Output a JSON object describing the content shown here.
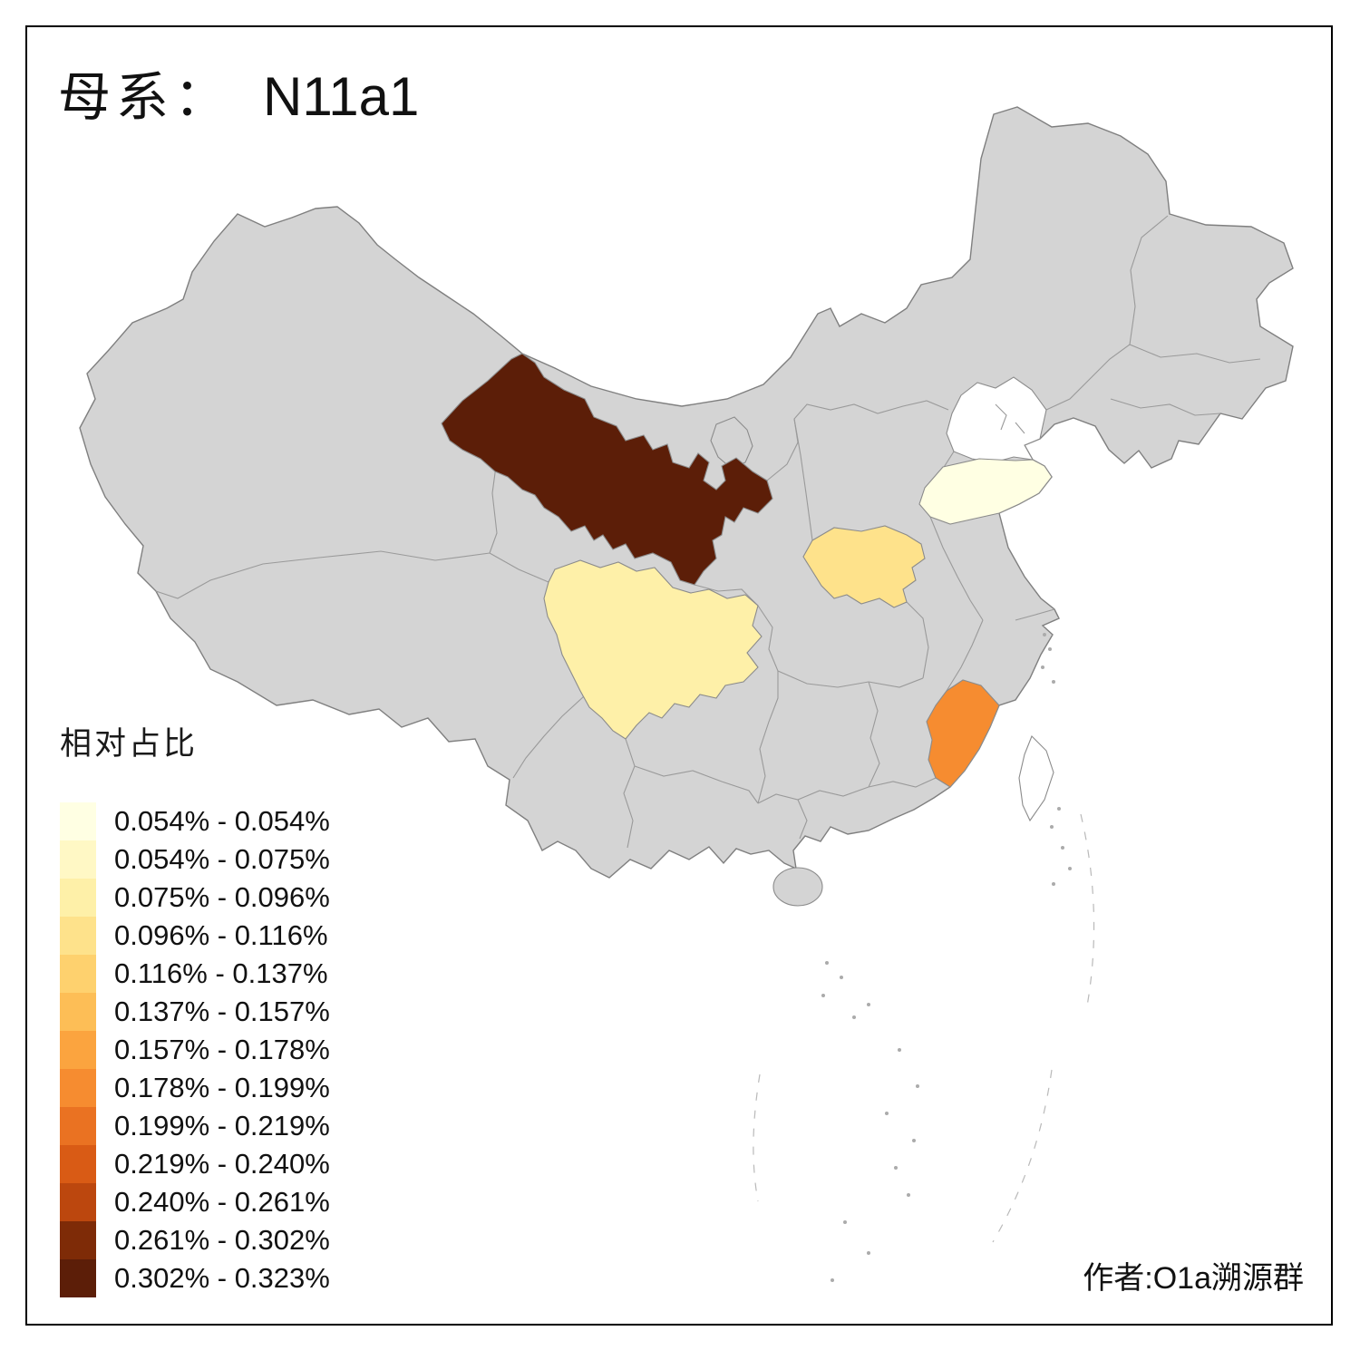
{
  "title": {
    "prefix": "母系：",
    "haplogroup": "N11a1"
  },
  "legend": {
    "title": "相对占比",
    "items": [
      {
        "range": "0.054% - 0.054%",
        "color": "#FFFFE3"
      },
      {
        "range": "0.054% - 0.075%",
        "color": "#FFF8C5"
      },
      {
        "range": "0.075% - 0.096%",
        "color": "#FEF0A8"
      },
      {
        "range": "0.096% - 0.116%",
        "color": "#FEE28B"
      },
      {
        "range": "0.116% - 0.137%",
        "color": "#FED16E"
      },
      {
        "range": "0.137% - 0.157%",
        "color": "#FDBE56"
      },
      {
        "range": "0.157% - 0.178%",
        "color": "#FBA43F"
      },
      {
        "range": "0.178% - 0.199%",
        "color": "#F68C30"
      },
      {
        "range": "0.199% - 0.219%",
        "color": "#EA7222"
      },
      {
        "range": "0.219% - 0.240%",
        "color": "#D95B15"
      },
      {
        "range": "0.240% - 0.261%",
        "color": "#BC470E"
      },
      {
        "range": "0.261% - 0.302%",
        "color": "#7E2B07"
      },
      {
        "range": "0.302% - 0.323%",
        "color": "#5C1E08"
      }
    ]
  },
  "credit": "作者:O1a溯源群",
  "map": {
    "base_fill": "#D4D4D4",
    "no_data_fill": "#FFFFFF",
    "provinces": {
      "gansu": {
        "name": "Gansu",
        "color": "#5C1E08",
        "range": "0.302% - 0.323%"
      },
      "sichuan": {
        "name": "Sichuan",
        "color": "#FEF0A8",
        "range": "0.075% - 0.096%"
      },
      "henan": {
        "name": "Henan",
        "color": "#FEE28B",
        "range": "0.096% - 0.116%"
      },
      "shandong": {
        "name": "Shandong",
        "color": "#FFFFE3",
        "range": "0.054% - 0.054%"
      },
      "fujian": {
        "name": "Fujian",
        "color": "#F68C30",
        "range": "0.178% - 0.199%"
      }
    }
  }
}
